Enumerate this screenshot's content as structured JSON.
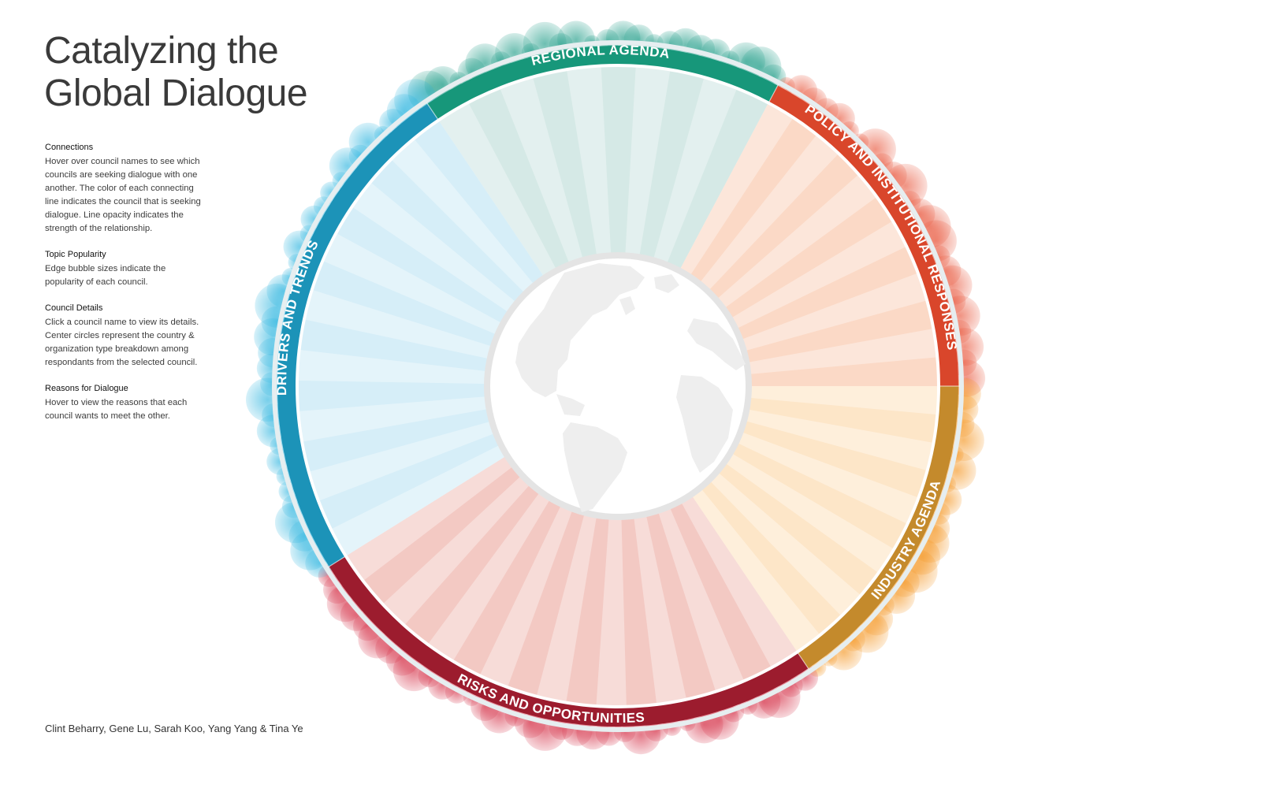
{
  "title": {
    "line1": "Catalyzing the",
    "line2": "Global Dialogue"
  },
  "sections": [
    {
      "heading": "Connections",
      "body": "Hover over council names to see which councils are seeking dialogue with one another.  The color of each connecting line indicates the council that is seeking dialogue. Line opacity indicates the strength of the relationship."
    },
    {
      "heading": "Topic Popularity",
      "body": "Edge bubble sizes indicate the popularity of each council."
    },
    {
      "heading": "Council Details",
      "body": "Click a council name to view its details. Center circles represent the country & organization type breakdown among respondants from the selected council."
    },
    {
      "heading": "Reasons for Dialogue",
      "body": "Hover to view the reasons that each council wants to meet the other."
    }
  ],
  "credits": "Clint Beharry, Gene Lu, Sarah Koo, Yang Yang & Tina Ye",
  "categories": [
    {
      "label": "REGIONAL AGENDA",
      "color": "#17977a",
      "fill": "#d5e9e6",
      "bubble": "#1a9a85"
    },
    {
      "label": "POLICY AND INSTITUTIONAL RESPONSES",
      "color": "#d9462b",
      "fill": "#fbd9c6",
      "bubble": "#e8553a"
    },
    {
      "label": "INDUSTRY AGENDA",
      "color": "#c48a2c",
      "fill": "#fde6c8",
      "bubble": "#f4931c"
    },
    {
      "label": "RISKS AND OPPORTUNITIES",
      "color": "#9c1c2e",
      "fill": "#f3c9c3",
      "bubble": "#d42d44"
    },
    {
      "label": "DRIVERS AND TRENDS",
      "color": "#1c93b8",
      "fill": "#d6eef8",
      "bubble": "#29b3de"
    }
  ]
}
